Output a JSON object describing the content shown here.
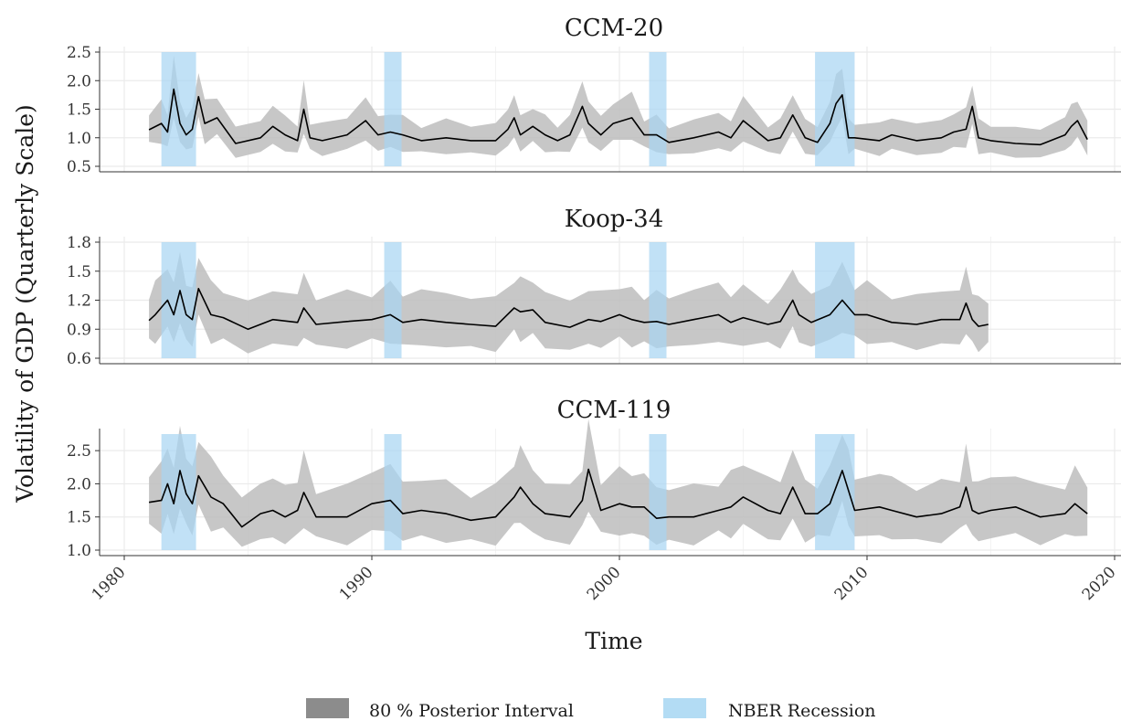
{
  "figure": {
    "ylabel": "Volatility of GDP (Quarterly Scale)",
    "xlabel": "Time"
  },
  "legend": {
    "position": "bottom",
    "items": [
      {
        "label": "80 % Posterior Interval",
        "color": "#8c8c8c"
      },
      {
        "label": "NBER Recession",
        "color": "#b3dcf4"
      }
    ]
  },
  "colors": {
    "band": "#bdbdbd",
    "line": "#000000",
    "recession": "#a9d6f2",
    "grid": "#ebebeb"
  },
  "recessions": [
    [
      1981.5,
      1982.9
    ],
    [
      1990.5,
      1991.2
    ],
    [
      2001.2,
      2001.9
    ],
    [
      2007.9,
      2009.5
    ]
  ],
  "chart_data": [
    {
      "type": "line",
      "title": "CCM-20",
      "xlim": [
        1980,
        2020
      ],
      "ylim": [
        0.5,
        2.5
      ],
      "yticks": [
        "0.5",
        "1.0",
        "1.5",
        "2.0",
        "2.5"
      ],
      "xticks": [],
      "series": [
        {
          "x": [
            1981,
            1981.5,
            1981.75,
            1982,
            1982.25,
            1982.5,
            1982.75,
            1983,
            1983.25,
            1983.75,
            1984.5,
            1985.5,
            1986,
            1986.5,
            1987,
            1987.25,
            1987.5,
            1988,
            1989,
            1989.75,
            1990.25,
            1990.75,
            1991.25,
            1992,
            1993,
            1994,
            1995,
            1995.5,
            1995.75,
            1996,
            1996.5,
            1997,
            1997.5,
            1998,
            1998.5,
            1998.75,
            1999.25,
            1999.75,
            2000.5,
            2001,
            2001.5,
            2002,
            2003,
            2004,
            2004.5,
            2005,
            2006,
            2006.5,
            2007,
            2007.5,
            2008,
            2008.5,
            2008.75,
            2009,
            2009.25,
            2009.5,
            2010.5,
            2011,
            2012,
            2013,
            2013.5,
            2014,
            2014.25,
            2014.5,
            2015,
            2016,
            2017,
            2018,
            2018.25,
            2018.5,
            2018.9
          ],
          "y": [
            1.14,
            1.25,
            1.1,
            1.85,
            1.25,
            1.05,
            1.15,
            1.72,
            1.25,
            1.35,
            0.9,
            1.0,
            1.2,
            1.05,
            0.95,
            1.5,
            1.0,
            0.95,
            1.05,
            1.3,
            1.05,
            1.1,
            1.05,
            0.95,
            1.0,
            0.95,
            0.95,
            1.15,
            1.35,
            1.05,
            1.2,
            1.05,
            0.95,
            1.05,
            1.55,
            1.25,
            1.05,
            1.25,
            1.35,
            1.05,
            1.05,
            0.92,
            1.0,
            1.1,
            1.0,
            1.3,
            0.95,
            1.0,
            1.4,
            1.0,
            0.92,
            1.25,
            1.6,
            1.75,
            1.0,
            1.0,
            0.95,
            1.05,
            0.95,
            1.0,
            1.1,
            1.15,
            1.55,
            1.0,
            0.95,
            0.9,
            0.88,
            1.05,
            1.2,
            1.3,
            0.97
          ]
        }
      ]
    },
    {
      "type": "line",
      "title": "Koop-34",
      "xlim": [
        1980,
        2020
      ],
      "ylim": [
        0.6,
        1.8
      ],
      "yticks": [
        "0.6",
        "0.9",
        "1.2",
        "1.5",
        "1.8"
      ],
      "xticks": [],
      "series": [
        {
          "x": [
            1981,
            1981.25,
            1981.75,
            1982,
            1982.25,
            1982.5,
            1982.75,
            1983,
            1983.5,
            1984,
            1985,
            1986,
            1987,
            1987.25,
            1987.75,
            1989,
            1990,
            1990.75,
            1991.25,
            1992,
            1993,
            1994,
            1995,
            1995.75,
            1996,
            1996.5,
            1997,
            1998,
            1998.75,
            1999.25,
            2000,
            2000.5,
            2001,
            2001.5,
            2002,
            2003,
            2004,
            2004.5,
            2005,
            2006,
            2006.5,
            2007,
            2007.25,
            2007.75,
            2008.5,
            2009,
            2009.5,
            2010,
            2011,
            2012,
            2013,
            2013.75,
            2014,
            2014.25,
            2014.5,
            2014.9
          ],
          "y": [
            0.99,
            1.05,
            1.2,
            1.05,
            1.3,
            1.05,
            1.0,
            1.32,
            1.05,
            1.02,
            0.9,
            1.0,
            0.97,
            1.12,
            0.95,
            0.98,
            1.0,
            1.05,
            0.97,
            1.0,
            0.97,
            0.95,
            0.93,
            1.12,
            1.08,
            1.1,
            0.97,
            0.92,
            1.0,
            0.98,
            1.05,
            1.0,
            0.97,
            0.98,
            0.95,
            1.0,
            1.05,
            0.97,
            1.02,
            0.95,
            0.98,
            1.2,
            1.05,
            0.97,
            1.05,
            1.2,
            1.05,
            1.05,
            0.97,
            0.95,
            1.0,
            1.0,
            1.17,
            1.0,
            0.93,
            0.95
          ]
        }
      ]
    },
    {
      "type": "line",
      "title": "CCM-119",
      "xlim": [
        1980,
        2020
      ],
      "ylim": [
        1.0,
        2.75
      ],
      "yticks": [
        "1.0",
        "1.5",
        "2.0",
        "2.5"
      ],
      "xticks": [
        "1980",
        "1990",
        "2000",
        "2010",
        "2020"
      ],
      "series": [
        {
          "x": [
            1981,
            1981.5,
            1981.75,
            1982,
            1982.25,
            1982.5,
            1982.75,
            1983,
            1983.5,
            1984,
            1984.75,
            1985.5,
            1986,
            1986.5,
            1987,
            1987.25,
            1987.75,
            1989,
            1990,
            1990.75,
            1991.25,
            1992,
            1993,
            1994,
            1995,
            1995.75,
            1996,
            1996.5,
            1997,
            1998,
            1998.5,
            1998.75,
            1999.25,
            2000,
            2000.5,
            2001,
            2001.5,
            2002,
            2003,
            2004,
            2004.5,
            2005,
            2006,
            2006.5,
            2007,
            2007.5,
            2008,
            2008.5,
            2009,
            2009.25,
            2009.5,
            2010.5,
            2011,
            2012,
            2013,
            2013.75,
            2014,
            2014.25,
            2014.5,
            2015,
            2016,
            2017,
            2018,
            2018.4,
            2018.9
          ],
          "y": [
            1.72,
            1.75,
            2.0,
            1.7,
            2.2,
            1.85,
            1.7,
            2.12,
            1.8,
            1.7,
            1.35,
            1.55,
            1.6,
            1.5,
            1.6,
            1.87,
            1.5,
            1.5,
            1.7,
            1.75,
            1.55,
            1.6,
            1.55,
            1.45,
            1.5,
            1.8,
            1.95,
            1.7,
            1.55,
            1.5,
            1.75,
            2.22,
            1.6,
            1.7,
            1.65,
            1.65,
            1.48,
            1.5,
            1.5,
            1.6,
            1.65,
            1.8,
            1.6,
            1.55,
            1.95,
            1.55,
            1.55,
            1.7,
            2.2,
            1.9,
            1.6,
            1.65,
            1.6,
            1.5,
            1.55,
            1.65,
            1.95,
            1.6,
            1.55,
            1.6,
            1.65,
            1.5,
            1.55,
            1.7,
            1.55
          ]
        }
      ]
    }
  ]
}
